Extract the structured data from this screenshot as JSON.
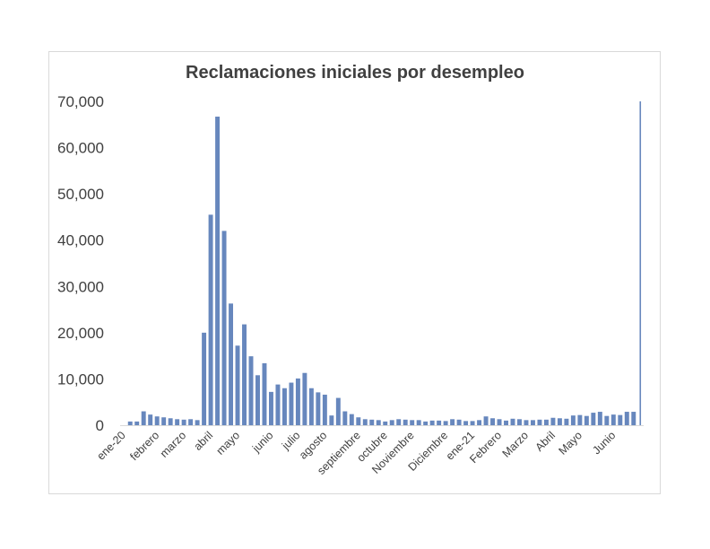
{
  "chart_data": {
    "type": "bar",
    "title": "Reclamaciones iniciales por desempleo",
    "xlabel": "",
    "ylabel": "",
    "ylim": [
      0,
      70000
    ],
    "yticks": [
      "0",
      "10,000",
      "20,000",
      "30,000",
      "40,000",
      "50,000",
      "60,000",
      "70,000"
    ],
    "ytick_values": [
      0,
      10000,
      20000,
      30000,
      40000,
      50000,
      60000,
      70000
    ],
    "grid": false,
    "legend": "none",
    "color": "#6787bd",
    "x_tick_labels": [
      {
        "label": "ene-20",
        "index": 0
      },
      {
        "label": "febrero",
        "index": 5
      },
      {
        "label": "marzo",
        "index": 9
      },
      {
        "label": "abril",
        "index": 13
      },
      {
        "label": "mayo",
        "index": 17
      },
      {
        "label": "junio",
        "index": 22
      },
      {
        "label": "julio",
        "index": 26
      },
      {
        "label": "agosto",
        "index": 30
      },
      {
        "label": "septiembre",
        "index": 35
      },
      {
        "label": "octubre",
        "index": 39
      },
      {
        "label": "Noviembre",
        "index": 43
      },
      {
        "label": "Diciembre",
        "index": 48
      },
      {
        "label": "ene-21",
        "index": 52
      },
      {
        "label": "Febrero",
        "index": 56
      },
      {
        "label": "Marzo",
        "index": 60
      },
      {
        "label": "Abril",
        "index": 64
      },
      {
        "label": "Mayo",
        "index": 68
      },
      {
        "label": "Junio",
        "index": 73
      }
    ],
    "values": [
      0,
      800,
      800,
      3000,
      2300,
      1900,
      1700,
      1500,
      1300,
      1200,
      1300,
      1100,
      20000,
      45500,
      66700,
      42000,
      26300,
      17200,
      21800,
      14900,
      10800,
      13400,
      7200,
      8800,
      8000,
      9200,
      10100,
      11300,
      8000,
      7100,
      6600,
      2100,
      5900,
      3000,
      2400,
      1700,
      1300,
      1200,
      1100,
      800,
      1100,
      1300,
      1200,
      1100,
      1100,
      800,
      1000,
      1000,
      900,
      1300,
      1200,
      900,
      900,
      1100,
      1900,
      1500,
      1300,
      1000,
      1400,
      1300,
      1100,
      1100,
      1200,
      1200,
      1600,
      1500,
      1400,
      2100,
      2200,
      2000,
      2700,
      2900,
      2000,
      2300,
      2200,
      2900,
      2900,
      70000
    ]
  }
}
